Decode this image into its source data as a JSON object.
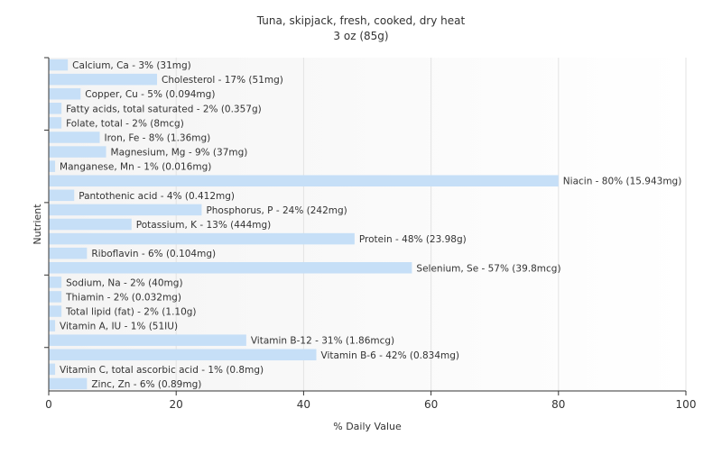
{
  "chart_data": {
    "type": "bar",
    "orientation": "horizontal",
    "title": "Tuna, skipjack, fresh, cooked, dry heat",
    "subtitle": "3 oz (85g)",
    "xlabel": "% Daily Value",
    "ylabel": "Nutrient",
    "xlim": [
      0,
      100
    ],
    "xticks": [
      0,
      20,
      40,
      60,
      80,
      100
    ],
    "grid": true,
    "bar_color": "#c6dff7",
    "categories": [
      "Calcium, Ca",
      "Cholesterol",
      "Copper, Cu",
      "Fatty acids, total saturated",
      "Folate, total",
      "Iron, Fe",
      "Magnesium, Mg",
      "Manganese, Mn",
      "Niacin",
      "Pantothenic acid",
      "Phosphorus, P",
      "Potassium, K",
      "Protein",
      "Riboflavin",
      "Selenium, Se",
      "Sodium, Na",
      "Thiamin",
      "Total lipid (fat)",
      "Vitamin A, IU",
      "Vitamin B-12",
      "Vitamin B-6",
      "Vitamin C, total ascorbic acid",
      "Zinc, Zn"
    ],
    "values": [
      3,
      17,
      5,
      2,
      2,
      8,
      9,
      1,
      80,
      4,
      24,
      13,
      48,
      6,
      57,
      2,
      2,
      2,
      1,
      31,
      42,
      1,
      6
    ],
    "labels": [
      "Calcium, Ca - 3% (31mg)",
      "Cholesterol - 17% (51mg)",
      "Copper, Cu - 5% (0.094mg)",
      "Fatty acids, total saturated - 2% (0.357g)",
      "Folate, total - 2% (8mcg)",
      "Iron, Fe - 8% (1.36mg)",
      "Magnesium, Mg - 9% (37mg)",
      "Manganese, Mn - 1% (0.016mg)",
      "Niacin - 80% (15.943mg)",
      "Pantothenic acid - 4% (0.412mg)",
      "Phosphorus, P - 24% (242mg)",
      "Potassium, K - 13% (444mg)",
      "Protein - 48% (23.98g)",
      "Riboflavin - 6% (0.104mg)",
      "Selenium, Se - 57% (39.8mcg)",
      "Sodium, Na - 2% (40mg)",
      "Thiamin - 2% (0.032mg)",
      "Total lipid (fat) - 2% (1.10g)",
      "Vitamin A, IU - 1% (51IU)",
      "Vitamin B-12 - 31% (1.86mcg)",
      "Vitamin B-6 - 42% (0.834mg)",
      "Vitamin C, total ascorbic acid - 1% (0.8mg)",
      "Zinc, Zn - 6% (0.89mg)"
    ]
  }
}
